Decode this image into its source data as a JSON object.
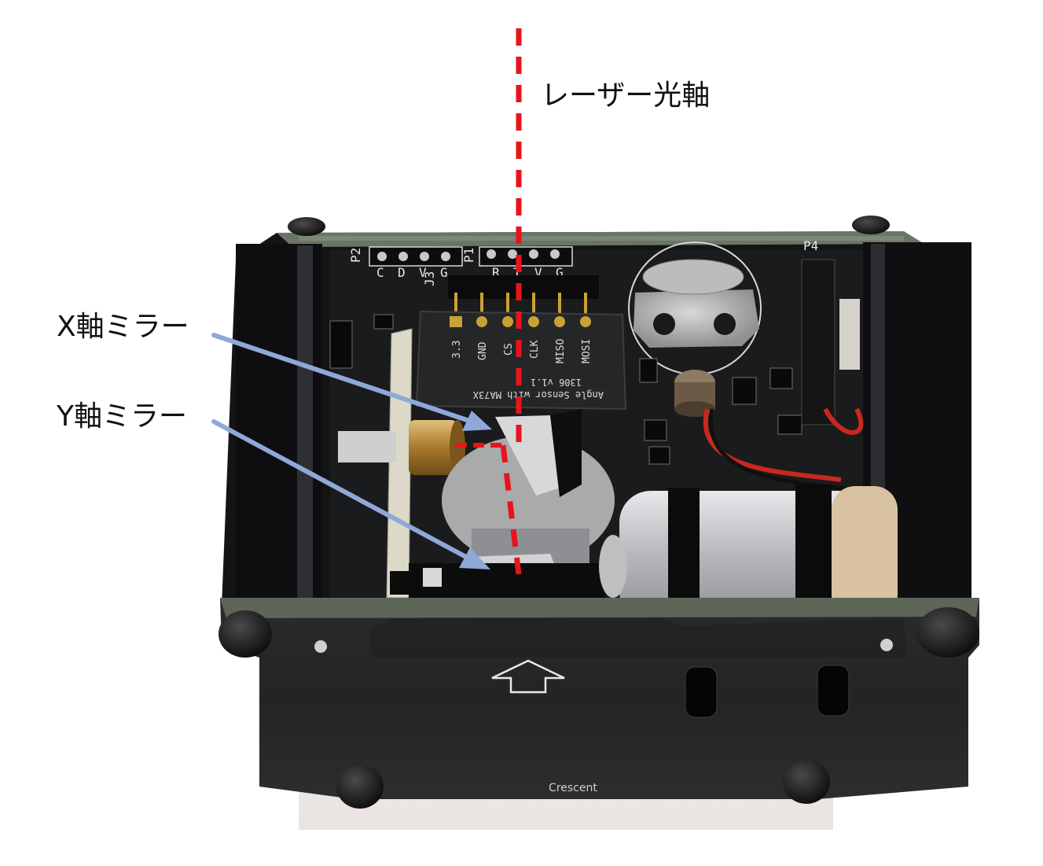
{
  "annotations": {
    "laser_axis": "レーザー光軸",
    "x_mirror": "X軸ミラー",
    "y_mirror": "Y軸ミラー"
  },
  "pcb_silkscreen": {
    "p2": "P2",
    "p2_pins": [
      "C",
      "D",
      "V",
      "G"
    ],
    "p1": "P1",
    "p1_pins": [
      "R",
      "T",
      "V",
      "G"
    ],
    "j3": "J3",
    "p4": "P4",
    "module_pins": [
      "3.3",
      "GND",
      "CS",
      "CLK",
      "MISO",
      "MOSI"
    ],
    "module_text_1": "Angle Sensor with MA73X",
    "module_text_2": "1306 v1.1",
    "bottom_mark": "Crescent"
  },
  "colors": {
    "laser_line": "#e8141b",
    "arrow": "#8fa8d8",
    "pcb": "#1c1c1e",
    "pcb_edge": "#5d6656",
    "pin_gold": "#c9a235",
    "brass": "#b98d3a",
    "motor_silver": "#c9cacc",
    "wire_red": "#c8281e"
  }
}
